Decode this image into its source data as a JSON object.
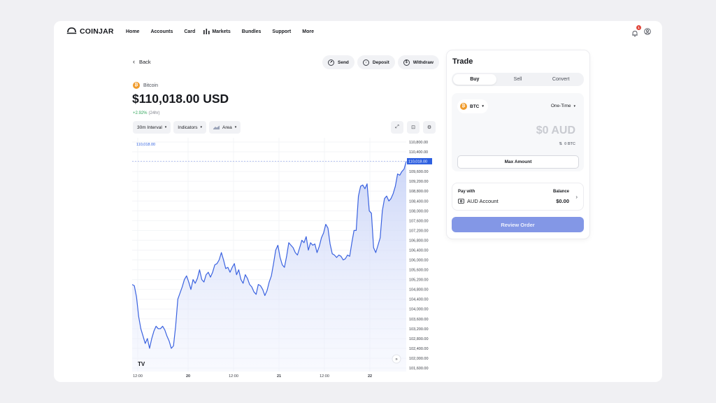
{
  "brand": {
    "name": "COINJAR"
  },
  "nav": {
    "items": [
      {
        "label": "Home"
      },
      {
        "label": "Accounts"
      },
      {
        "label": "Card"
      },
      {
        "label": "Markets"
      },
      {
        "label": "Bundles"
      },
      {
        "label": "Support"
      },
      {
        "label": "More"
      }
    ],
    "notification_count": "1"
  },
  "back_label": "Back",
  "actions": {
    "send": "Send",
    "deposit": "Deposit",
    "withdraw": "Withdraw"
  },
  "asset": {
    "name": "Bitcoin",
    "price": "$110,018.00 USD",
    "change": "+2.92%",
    "period": "(24hr)"
  },
  "chart_toolbar": {
    "interval": "30m Interval",
    "indicators": "Indicators",
    "type": "Area"
  },
  "chart_data": {
    "type": "area",
    "title": "",
    "ylim": [
      101600,
      110800
    ],
    "y_ticks": [
      "110,800.00",
      "110,400.00",
      "110,000.00",
      "109,600.00",
      "109,200.00",
      "108,800.00",
      "108,400.00",
      "108,000.00",
      "107,600.00",
      "107,200.00",
      "106,800.00",
      "106,400.00",
      "106,000.00",
      "105,600.00",
      "105,200.00",
      "104,800.00",
      "104,400.00",
      "104,000.00",
      "103,600.00",
      "103,200.00",
      "102,800.00",
      "102,400.00",
      "102,000.00",
      "101,600.00"
    ],
    "x_ticks": [
      "12:00",
      "20",
      "12:00",
      "21",
      "12:00",
      "22"
    ],
    "last_price_label": "110,018.00",
    "top_left_label": "110,018.00",
    "last_price": 110018,
    "values": [
      105000,
      104950,
      104500,
      103700,
      103200,
      102900,
      102600,
      102800,
      102400,
      102800,
      103100,
      103300,
      103200,
      103200,
      103300,
      103150,
      102900,
      102700,
      102400,
      102500,
      103300,
      104400,
      104650,
      104900,
      105200,
      105350,
      105100,
      104800,
      105200,
      105050,
      105250,
      105600,
      105200,
      105100,
      105400,
      105500,
      105300,
      105500,
      105800,
      105850,
      106000,
      106300,
      106000,
      105650,
      105700,
      105500,
      105700,
      105850,
      105400,
      105600,
      105200,
      105050,
      105400,
      105250,
      105000,
      104900,
      104700,
      104600,
      105000,
      104950,
      104800,
      104550,
      104750,
      105100,
      105350,
      105850,
      106400,
      106600,
      106100,
      105800,
      105700,
      106150,
      106700,
      106600,
      106500,
      106300,
      106200,
      106500,
      106800,
      106700,
      106950,
      106400,
      106700,
      106600,
      106650,
      106300,
      106550,
      106900,
      107100,
      107450,
      107300,
      106650,
      106250,
      106200,
      106100,
      106200,
      106150,
      106000,
      106050,
      106200,
      106150,
      106700,
      107200,
      107200,
      108600,
      109000,
      109050,
      108900,
      109100,
      108000,
      107900,
      106500,
      106300,
      106600,
      106900,
      108000,
      108500,
      108600,
      108400,
      108500,
      108700,
      109000,
      109500,
      109450,
      109600,
      109700,
      110018
    ]
  },
  "trade": {
    "title": "Trade",
    "tabs": [
      "Buy",
      "Sell",
      "Convert"
    ],
    "coin": "BTC",
    "frequency": "One-Time",
    "amount": "$0 AUD",
    "sub_amount": "0 BTC",
    "max_label": "Max Amount",
    "pay_with_label": "Pay with",
    "pay_account": "AUD Account",
    "balance_label": "Balance",
    "balance_value": "$0.00",
    "review_label": "Review Order"
  }
}
